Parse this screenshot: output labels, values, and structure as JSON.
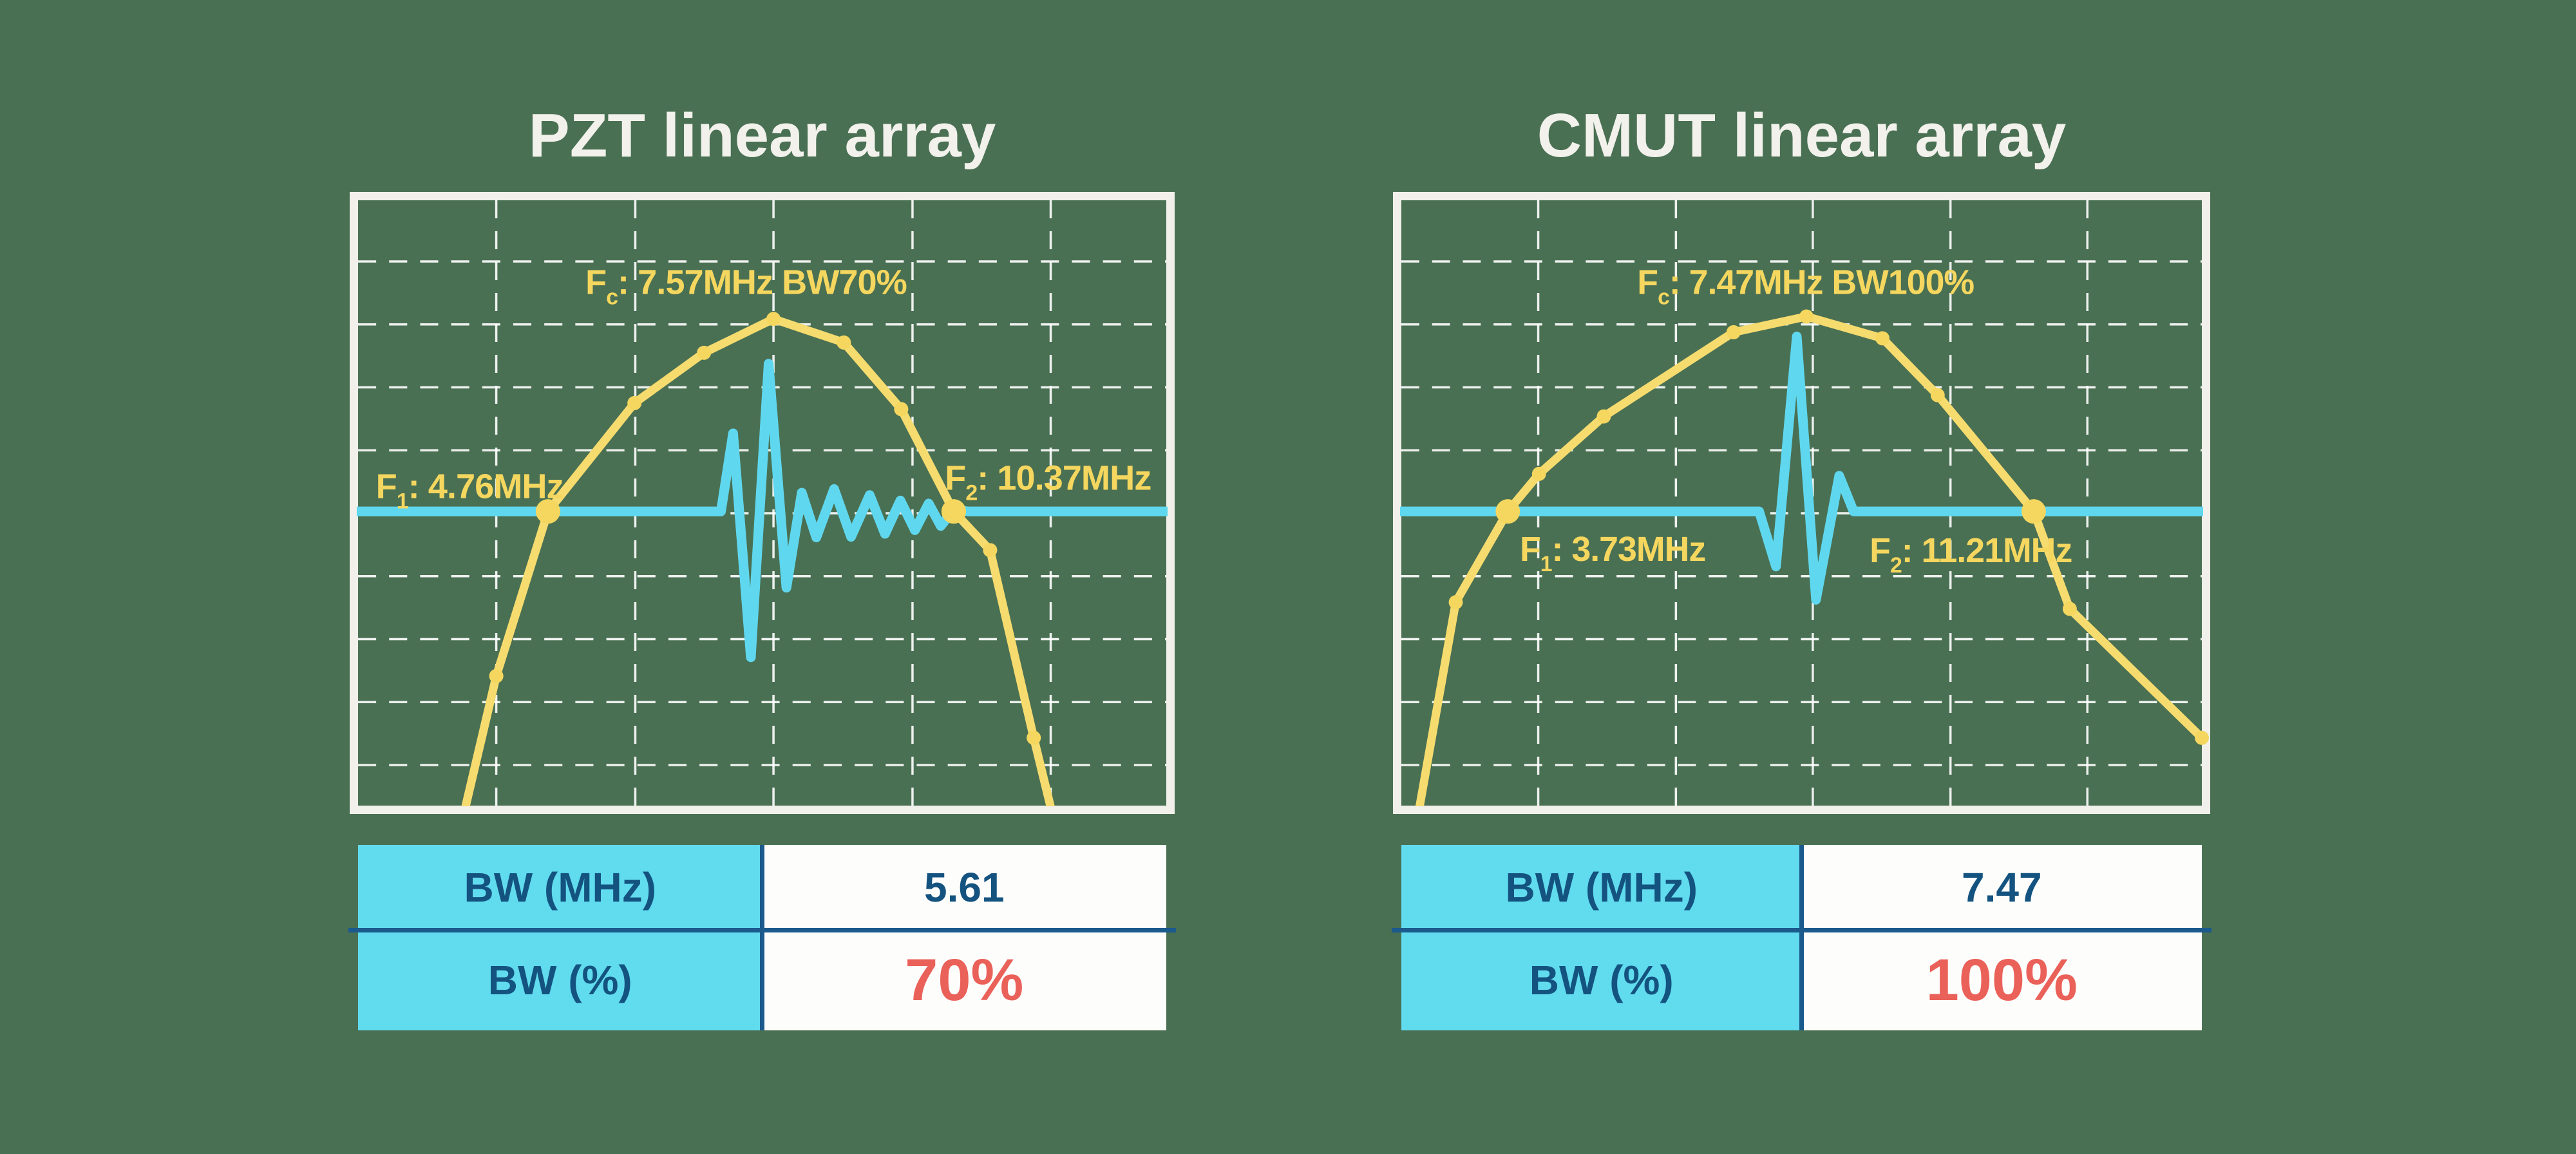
{
  "colors": {
    "background": "#4a7053",
    "title": "#f2f1ec",
    "frame": "#f1f0ea",
    "grid": "rgba(255,255,255,0.9)",
    "curve": "#f6dc6f",
    "marker": "#f5d75f",
    "annotation": "#f5d75f",
    "pulse": "#5fd8ef",
    "table_header_bg": "#61dbee",
    "table_value_bg": "#fdfdfc",
    "table_text_blue": "#14537f",
    "table_divider": "#1b5a8c",
    "table_value_red": "#ea6159"
  },
  "panels": [
    {
      "title": "PZT linear array",
      "table": {
        "rows": [
          {
            "label": "BW (MHz)",
            "value": "5.61",
            "style": "blue"
          },
          {
            "label": "BW (%)",
            "value": "70%",
            "style": "red"
          }
        ]
      }
    },
    {
      "title": "CMUT linear array",
      "table": {
        "rows": [
          {
            "label": "BW (MHz)",
            "value": "7.47",
            "style": "blue"
          },
          {
            "label": "BW (%)",
            "value": "100%",
            "style": "red"
          }
        ]
      }
    }
  ],
  "chart_data": [
    {
      "type": "line",
      "title": "PZT linear array",
      "xlabel": "",
      "ylabel": "",
      "f1_MHz": 4.76,
      "fc_MHz": 7.57,
      "f2_MHz": 10.37,
      "bw_MHz": 5.61,
      "bw_percent": 70,
      "note": "coordinates normalized to plot area: x 0-1 left to right, y 0-1 top to bottom",
      "grid": {
        "style": "dashed",
        "col_fracs": [
          0.171,
          0.343,
          0.514,
          0.686,
          0.857
        ],
        "row_fracs": [
          0.101,
          0.205,
          0.309,
          0.413,
          0.517,
          0.621,
          0.725,
          0.829,
          0.933
        ]
      },
      "baseline_frac": 0.514,
      "spectrum": [
        {
          "x": 0.128,
          "y": 1.03
        },
        {
          "x": 0.171,
          "y": 0.786,
          "m": "s"
        },
        {
          "x": 0.235,
          "y": 0.514,
          "m": "b"
        },
        {
          "x": 0.342,
          "y": 0.335,
          "m": "s"
        },
        {
          "x": 0.428,
          "y": 0.252,
          "m": "s"
        },
        {
          "x": 0.514,
          "y": 0.196,
          "m": "s"
        },
        {
          "x": 0.601,
          "y": 0.235,
          "m": "s"
        },
        {
          "x": 0.672,
          "y": 0.345,
          "m": "s"
        },
        {
          "x": 0.737,
          "y": 0.514,
          "m": "b"
        },
        {
          "x": 0.782,
          "y": 0.578,
          "m": "s"
        },
        {
          "x": 0.836,
          "y": 0.888,
          "m": "s"
        },
        {
          "x": 0.862,
          "y": 1.03
        }
      ],
      "pulse": [
        [
          0,
          0.514
        ],
        [
          0.449,
          0.514
        ],
        [
          0.464,
          0.385
        ],
        [
          0.486,
          0.755
        ],
        [
          0.508,
          0.27
        ],
        [
          0.53,
          0.64
        ],
        [
          0.549,
          0.483
        ],
        [
          0.567,
          0.557
        ],
        [
          0.589,
          0.477
        ],
        [
          0.61,
          0.556
        ],
        [
          0.633,
          0.487
        ],
        [
          0.652,
          0.551
        ],
        [
          0.671,
          0.496
        ],
        [
          0.689,
          0.545
        ],
        [
          0.706,
          0.501
        ],
        [
          0.721,
          0.538
        ],
        [
          0.737,
          0.511
        ],
        [
          0.755,
          0.514
        ],
        [
          1.0,
          0.514
        ]
      ],
      "annotations": [
        {
          "name": "fc-label",
          "prefix": "F",
          "sub": "c",
          "rest": ": 7.57MHz BW70%",
          "x": 0.48,
          "y": 0.155,
          "anchor": "middle"
        },
        {
          "name": "f1-label",
          "prefix": "F",
          "sub": "1",
          "rest": ": 4.76MHz",
          "x": 0.022,
          "y": 0.492,
          "anchor": "start"
        },
        {
          "name": "f2-label",
          "prefix": "F",
          "sub": "2",
          "rest": ": 10.37MHz",
          "x": 0.726,
          "y": 0.478,
          "anchor": "start"
        }
      ]
    },
    {
      "type": "line",
      "title": "CMUT linear array",
      "xlabel": "",
      "ylabel": "",
      "f1_MHz": 3.73,
      "fc_MHz": 7.47,
      "f2_MHz": 11.21,
      "bw_MHz": 7.47,
      "bw_percent": 100,
      "note": "coordinates normalized to plot area: x 0-1 left to right, y 0-1 top to bottom",
      "grid": {
        "style": "dashed",
        "col_fracs": [
          0.171,
          0.343,
          0.514,
          0.686,
          0.857
        ],
        "row_fracs": [
          0.101,
          0.205,
          0.309,
          0.413,
          0.517,
          0.621,
          0.725,
          0.829,
          0.933
        ]
      },
      "baseline_frac": 0.514,
      "spectrum": [
        {
          "x": 0.019,
          "y": 1.03
        },
        {
          "x": 0.068,
          "y": 0.664,
          "m": "s"
        },
        {
          "x": 0.133,
          "y": 0.514,
          "m": "b"
        },
        {
          "x": 0.172,
          "y": 0.452,
          "m": "s"
        },
        {
          "x": 0.253,
          "y": 0.357,
          "m": "s"
        },
        {
          "x": 0.415,
          "y": 0.218,
          "m": "s"
        },
        {
          "x": 0.506,
          "y": 0.192,
          "m": "s"
        },
        {
          "x": 0.601,
          "y": 0.228,
          "m": "s"
        },
        {
          "x": 0.67,
          "y": 0.322,
          "m": "s"
        },
        {
          "x": 0.79,
          "y": 0.514,
          "m": "b"
        },
        {
          "x": 0.835,
          "y": 0.675,
          "m": "s"
        },
        {
          "x": 1.0,
          "y": 0.888,
          "m": "s"
        }
      ],
      "pulse": [
        [
          0,
          0.514
        ],
        [
          0.447,
          0.514
        ],
        [
          0.468,
          0.605
        ],
        [
          0.494,
          0.225
        ],
        [
          0.518,
          0.66
        ],
        [
          0.547,
          0.455
        ],
        [
          0.565,
          0.514
        ],
        [
          1.0,
          0.514
        ]
      ],
      "annotations": [
        {
          "name": "fc-label",
          "prefix": "F",
          "sub": "c",
          "rest": ": 7.47MHz BW100%",
          "x": 0.505,
          "y": 0.155,
          "anchor": "middle"
        },
        {
          "name": "f1-label",
          "prefix": "F",
          "sub": "1",
          "rest": ": 3.73MHz",
          "x": 0.148,
          "y": 0.596,
          "anchor": "start"
        },
        {
          "name": "f2-label",
          "prefix": "F",
          "sub": "2",
          "rest": ": 11.21MHz",
          "x": 0.585,
          "y": 0.598,
          "anchor": "start"
        }
      ]
    }
  ]
}
